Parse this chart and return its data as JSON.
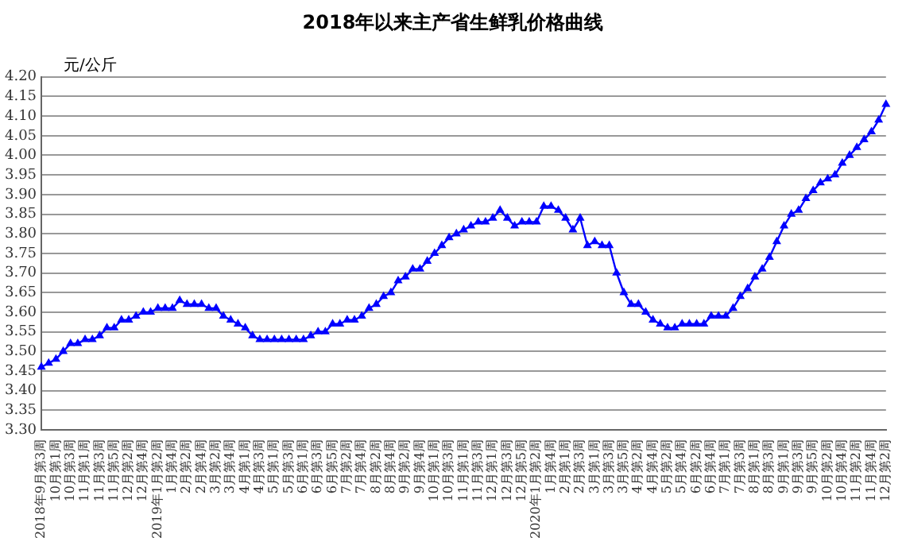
{
  "chart_data": {
    "type": "line",
    "title": "2018年以来主产省生鲜乳价格曲线",
    "ylabel": "元/公斤",
    "categories": [
      "2018年9月第3周",
      null,
      "10月第1周",
      null,
      "10月第3周",
      null,
      "11月第1周",
      null,
      "11月第3周",
      null,
      "11月第5周",
      null,
      "12月第2周",
      null,
      "12月第4周",
      null,
      "2019年1月第2周",
      null,
      "1月第4周",
      null,
      "2月第2周",
      null,
      "2月第4周",
      null,
      "3月第2周",
      null,
      "3月第4周",
      null,
      "4月第1周",
      null,
      "4月第3周",
      null,
      "5月第1周",
      null,
      "5月第3周",
      null,
      "6月第1周",
      null,
      "6月第3周",
      null,
      "6月第5周",
      null,
      "7月第2周",
      null,
      "7月第4周",
      null,
      "8月第2周",
      null,
      "8月第4周",
      null,
      "9月第2周",
      null,
      "9月第4周",
      null,
      "10月第1周",
      null,
      "10月第3周",
      null,
      "11月第1周",
      null,
      "11月第3周",
      null,
      "12月第1周",
      null,
      "12月第3周",
      null,
      "12月第5周",
      null,
      "2020年1月第2周",
      null,
      "1月第4周",
      null,
      "2月第1周",
      null,
      "2月第3周",
      null,
      "3月第1周",
      null,
      "3月第3周",
      null,
      "3月第5周",
      null,
      "4月第2周",
      null,
      "4月第4周",
      null,
      "5月第2周",
      null,
      "5月第4周",
      null,
      "6月第2周",
      null,
      "6月第4周",
      null,
      "7月第1周",
      null,
      "7月第3周",
      null,
      "8月第1周",
      null,
      "8月第3周",
      null,
      "9月第1周",
      null,
      "9月第3周",
      null,
      "9月第5周",
      null,
      "10月第2周",
      null,
      "10月第4周",
      null,
      "11月第2周",
      null,
      "11月第4周",
      null,
      "12月第2周"
    ],
    "series": [
      {
        "color": "#0000ff",
        "values": [
          3.46,
          3.47,
          3.48,
          3.5,
          3.52,
          3.52,
          3.53,
          3.53,
          3.54,
          3.56,
          3.56,
          3.58,
          3.58,
          3.59,
          3.6,
          3.6,
          3.61,
          3.61,
          3.61,
          3.63,
          3.62,
          3.62,
          3.62,
          3.61,
          3.61,
          3.59,
          3.58,
          3.57,
          3.56,
          3.54,
          3.53,
          3.53,
          3.53,
          3.53,
          3.53,
          3.53,
          3.53,
          3.54,
          3.55,
          3.55,
          3.57,
          3.57,
          3.58,
          3.58,
          3.59,
          3.61,
          3.62,
          3.64,
          3.65,
          3.68,
          3.69,
          3.71,
          3.71,
          3.73,
          3.75,
          3.77,
          3.79,
          3.8,
          3.81,
          3.82,
          3.83,
          3.83,
          3.84,
          3.86,
          3.84,
          3.82,
          3.83,
          3.83,
          3.83,
          3.87,
          3.87,
          3.86,
          3.84,
          3.81,
          3.84,
          3.77,
          3.78,
          3.77,
          3.77,
          3.7,
          3.65,
          3.62,
          3.62,
          3.6,
          3.58,
          3.57,
          3.56,
          3.56,
          3.57,
          3.57,
          3.57,
          3.57,
          3.59,
          3.59,
          3.59,
          3.61,
          3.64,
          3.66,
          3.69,
          3.71,
          3.74,
          3.78,
          3.82,
          3.85,
          3.86,
          3.89,
          3.91,
          3.93,
          3.94,
          3.95,
          3.98,
          4.0,
          4.02,
          4.04,
          4.06,
          4.09,
          4.13
        ]
      }
    ],
    "ylim": [
      3.3,
      4.2
    ],
    "yticks": [
      {
        "value": 3.3,
        "label": "3.30"
      },
      {
        "value": 3.35,
        "label": "3.35"
      },
      {
        "value": 3.4,
        "label": "3.40"
      },
      {
        "value": 3.45,
        "label": "3.45"
      },
      {
        "value": 3.5,
        "label": "3.50"
      },
      {
        "value": 3.55,
        "label": "3.55"
      },
      {
        "value": 3.6,
        "label": "3.60"
      },
      {
        "value": 3.65,
        "label": "3.65"
      },
      {
        "value": 3.7,
        "label": "3.70"
      },
      {
        "value": 3.75,
        "label": "3.75"
      },
      {
        "value": 3.8,
        "label": "3.80"
      },
      {
        "value": 3.85,
        "label": "3.85"
      },
      {
        "value": 3.9,
        "label": "3.90"
      },
      {
        "value": 3.95,
        "label": "3.95"
      },
      {
        "value": 4.0,
        "label": "4.00"
      },
      {
        "value": 4.05,
        "label": "4.05"
      },
      {
        "value": 4.1,
        "label": "4.10"
      },
      {
        "value": 4.15,
        "label": "4.15"
      },
      {
        "value": 4.2,
        "label": "4.20"
      }
    ],
    "grid": "y",
    "legend": false,
    "marker": "triangle",
    "line_style": "solid"
  }
}
